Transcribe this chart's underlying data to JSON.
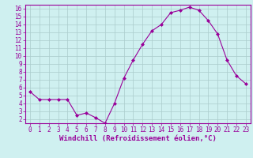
{
  "x": [
    0,
    1,
    2,
    3,
    4,
    5,
    6,
    7,
    8,
    9,
    10,
    11,
    12,
    13,
    14,
    15,
    16,
    17,
    18,
    19,
    20,
    21,
    22,
    23
  ],
  "y": [
    5.5,
    4.5,
    4.5,
    4.5,
    4.5,
    2.5,
    2.8,
    2.2,
    1.5,
    4.0,
    7.2,
    9.5,
    11.5,
    13.2,
    14.0,
    15.5,
    15.8,
    16.2,
    15.8,
    14.5,
    12.8,
    9.5,
    7.5,
    6.5
  ],
  "line_color": "#990099",
  "marker": "D",
  "marker_size": 2,
  "bg_color": "#cff0f0",
  "grid_color": "#aacccc",
  "xlabel": "Windchill (Refroidissement éolien,°C)",
  "xlim": [
    -0.5,
    23.5
  ],
  "ylim": [
    1.5,
    16.5
  ],
  "yticks": [
    2,
    3,
    4,
    5,
    6,
    7,
    8,
    9,
    10,
    11,
    12,
    13,
    14,
    15,
    16
  ],
  "xticks": [
    0,
    1,
    2,
    3,
    4,
    5,
    6,
    7,
    8,
    9,
    10,
    11,
    12,
    13,
    14,
    15,
    16,
    17,
    18,
    19,
    20,
    21,
    22,
    23
  ],
  "tick_label_color": "#990099",
  "axis_color": "#990099",
  "tick_font_size": 5.5,
  "xlabel_font_size": 6.5
}
